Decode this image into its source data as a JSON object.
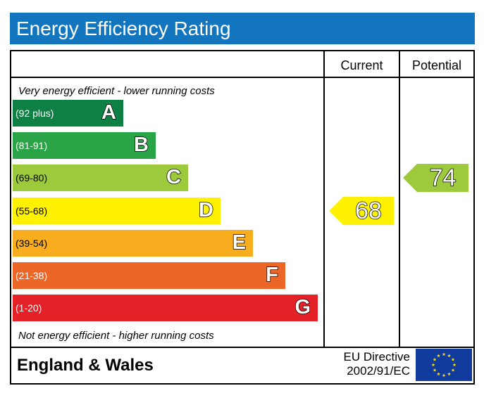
{
  "title": "Energy Efficiency Rating",
  "columns": {
    "current": "Current",
    "potential": "Potential"
  },
  "notes": {
    "top": "Very energy efficient - lower running costs",
    "bottom": "Not energy efficient - higher running costs"
  },
  "bands": [
    {
      "letter": "A",
      "range": "(92 plus)",
      "color": "#0f8044"
    },
    {
      "letter": "B",
      "range": "(81-91)",
      "color": "#2aa447"
    },
    {
      "letter": "C",
      "range": "(69-80)",
      "color": "#9cca3c"
    },
    {
      "letter": "D",
      "range": "(55-68)",
      "color": "#fff200"
    },
    {
      "letter": "E",
      "range": "(39-54)",
      "color": "#f7ad1e"
    },
    {
      "letter": "F",
      "range": "(21-38)",
      "color": "#ec6628"
    },
    {
      "letter": "G",
      "range": "(1-20)",
      "color": "#e52128"
    }
  ],
  "ratings": {
    "current": {
      "value": "68",
      "band": "D",
      "color": "#fff200"
    },
    "potential": {
      "value": "74",
      "band": "C",
      "color": "#9cca3c"
    }
  },
  "footer": {
    "country": "England & Wales",
    "directive_line1": "EU Directive",
    "directive_line2": "2002/91/EC"
  },
  "colors": {
    "title_bar": "#1275bd",
    "eu_flag_blue": "#103b9c",
    "eu_flag_stars": "#ffdd00"
  }
}
